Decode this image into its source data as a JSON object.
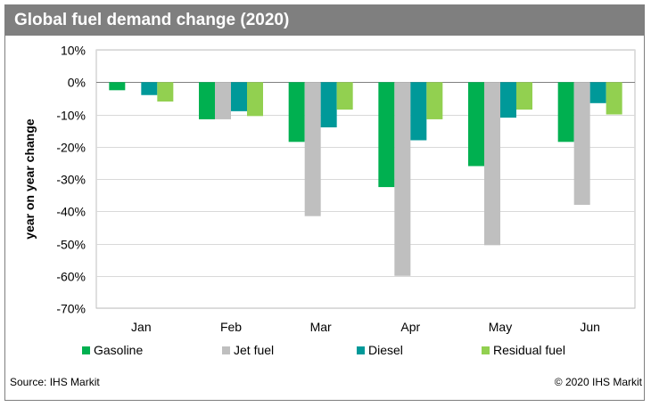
{
  "title": "Global fuel demand change (2020)",
  "source": "Source: IHS Markit",
  "copyright": "© 2020 IHS Markit",
  "chart_data": {
    "type": "bar",
    "ylabel": "year on year change",
    "xlabel": "",
    "categories": [
      "Jan",
      "Feb",
      "Mar",
      "Apr",
      "May",
      "Jun"
    ],
    "ylim": [
      -70,
      10
    ],
    "yticks": [
      10,
      0,
      -10,
      -20,
      -30,
      -40,
      -50,
      -60,
      -70
    ],
    "ytick_labels": [
      "10%",
      "0%",
      "-10%",
      "-20%",
      "-30%",
      "-40%",
      "-50%",
      "-60%",
      "-70%"
    ],
    "grid": true,
    "legend_position": "bottom",
    "series": [
      {
        "name": "Gasoline",
        "color": "#00b050",
        "values": [
          -2.5,
          -11.5,
          -18.5,
          -32.5,
          -26,
          -18.5
        ]
      },
      {
        "name": "Jet fuel",
        "color": "#bfbfbf",
        "values": [
          0,
          -11.5,
          -41.5,
          -60,
          -50.5,
          -38
        ]
      },
      {
        "name": "Diesel",
        "color": "#009999",
        "values": [
          -4,
          -9,
          -14,
          -18,
          -11,
          -6.5
        ]
      },
      {
        "name": "Residual fuel",
        "color": "#92d050",
        "values": [
          -6,
          -10.5,
          -8.5,
          -11.5,
          -8.5,
          -10
        ]
      }
    ]
  }
}
